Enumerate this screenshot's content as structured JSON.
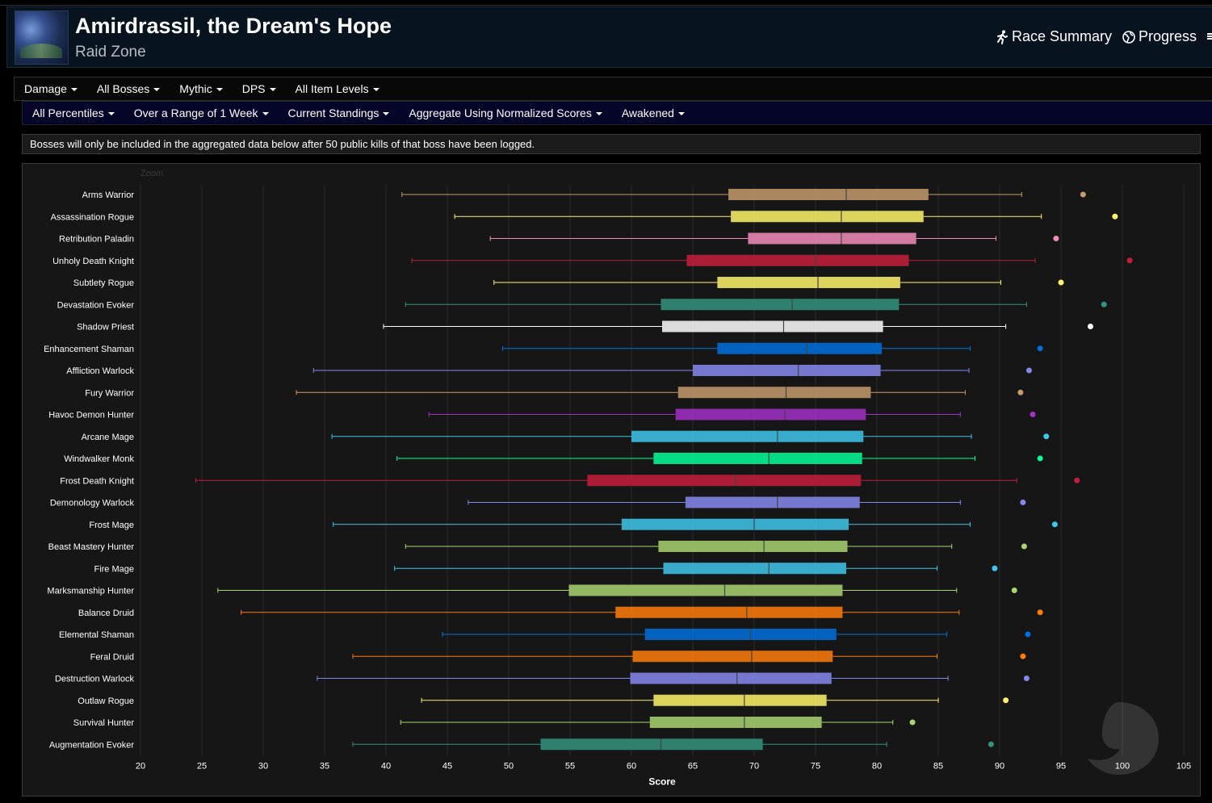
{
  "header": {
    "title": "Amirdrassil, the Dream's Hope",
    "subtitle": "Raid Zone",
    "icon": "raid-zone-icon",
    "links": [
      {
        "label": "Race Summary",
        "icon": "runner-icon"
      },
      {
        "label": "Progress",
        "icon": "globe-icon"
      }
    ]
  },
  "filters_row1": [
    "Damage",
    "All Bosses",
    "Mythic",
    "DPS",
    "All Item Levels"
  ],
  "filters_row2": [
    "All Percentiles",
    "Over a Range of 1 Week",
    "Current Standings",
    "Aggregate Using Normalized Scores",
    "Awakened"
  ],
  "notice": "Bosses will only be included in the aggregated data below after 50 public kills of that boss have been logged.",
  "chart_zoom_label": "Zoom",
  "chart_data": {
    "type": "boxplot",
    "orientation": "horizontal",
    "xlabel": "Score",
    "xlim": [
      20,
      105
    ],
    "xticks": [
      20,
      25,
      30,
      35,
      40,
      45,
      50,
      55,
      60,
      65,
      70,
      75,
      80,
      85,
      90,
      95,
      100,
      105
    ],
    "grid": true,
    "series": [
      {
        "name": "Arms Warrior",
        "color": "#C69B6D",
        "min": 41.3,
        "q1": 67.9,
        "median": 77.5,
        "q3": 84.2,
        "max": 91.8,
        "outlier": 96.8
      },
      {
        "name": "Assassination Rogue",
        "color": "#FFF468",
        "min": 45.6,
        "q1": 68.1,
        "median": 77.1,
        "q3": 83.8,
        "max": 93.4,
        "outlier": 99.4
      },
      {
        "name": "Retribution Paladin",
        "color": "#F48CBA",
        "min": 48.5,
        "q1": 69.5,
        "median": 77.1,
        "q3": 83.2,
        "max": 89.7,
        "outlier": 94.6
      },
      {
        "name": "Unholy Death Knight",
        "color": "#C41E3A",
        "min": 42.1,
        "q1": 64.5,
        "median": 75.0,
        "q3": 82.6,
        "max": 92.9,
        "outlier": 100.6
      },
      {
        "name": "Subtlety Rogue",
        "color": "#FFF468",
        "min": 48.8,
        "q1": 67.0,
        "median": 75.2,
        "q3": 81.9,
        "max": 90.1,
        "outlier": 95.0
      },
      {
        "name": "Devastation Evoker",
        "color": "#33937F",
        "min": 41.6,
        "q1": 62.4,
        "median": 73.1,
        "q3": 81.8,
        "max": 92.2,
        "outlier": 98.5
      },
      {
        "name": "Shadow Priest",
        "color": "#FFFFFF",
        "min": 39.8,
        "q1": 62.5,
        "median": 72.4,
        "q3": 80.5,
        "max": 90.5,
        "outlier": 97.4
      },
      {
        "name": "Enhancement Shaman",
        "color": "#0070DD",
        "min": 49.5,
        "q1": 67.0,
        "median": 74.3,
        "q3": 80.4,
        "max": 87.6,
        "outlier": 93.3
      },
      {
        "name": "Affliction Warlock",
        "color": "#8788EE",
        "min": 34.1,
        "q1": 65.0,
        "median": 73.6,
        "q3": 80.3,
        "max": 87.5,
        "outlier": 92.4
      },
      {
        "name": "Fury Warrior",
        "color": "#C69B6D",
        "min": 32.7,
        "q1": 63.8,
        "median": 72.6,
        "q3": 79.5,
        "max": 87.2,
        "outlier": 91.7
      },
      {
        "name": "Havoc Demon Hunter",
        "color": "#A330C9",
        "min": 43.5,
        "q1": 63.6,
        "median": 72.5,
        "q3": 79.1,
        "max": 86.8,
        "outlier": 92.7
      },
      {
        "name": "Arcane Mage",
        "color": "#3FC7EB",
        "min": 35.6,
        "q1": 60.0,
        "median": 71.9,
        "q3": 78.9,
        "max": 87.7,
        "outlier": 93.8
      },
      {
        "name": "Windwalker Monk",
        "color": "#00FF98",
        "min": 40.9,
        "q1": 61.8,
        "median": 71.2,
        "q3": 78.8,
        "max": 88.0,
        "outlier": 93.3
      },
      {
        "name": "Frost Death Knight",
        "color": "#C41E3A",
        "min": 24.5,
        "q1": 56.4,
        "median": 68.5,
        "q3": 78.7,
        "max": 91.4,
        "outlier": 96.3
      },
      {
        "name": "Demonology Warlock",
        "color": "#8788EE",
        "min": 46.7,
        "q1": 64.4,
        "median": 71.9,
        "q3": 78.6,
        "max": 86.8,
        "outlier": 91.9
      },
      {
        "name": "Frost Mage",
        "color": "#3FC7EB",
        "min": 35.7,
        "q1": 59.2,
        "median": 70.0,
        "q3": 77.7,
        "max": 87.6,
        "outlier": 94.5
      },
      {
        "name": "Beast Mastery Hunter",
        "color": "#AAD372",
        "min": 41.6,
        "q1": 62.2,
        "median": 70.8,
        "q3": 77.6,
        "max": 86.1,
        "outlier": 92.0
      },
      {
        "name": "Fire Mage",
        "color": "#3FC7EB",
        "min": 40.7,
        "q1": 62.6,
        "median": 71.2,
        "q3": 77.5,
        "max": 84.9,
        "outlier": 89.6
      },
      {
        "name": "Marksmanship Hunter",
        "color": "#AAD372",
        "min": 26.3,
        "q1": 54.9,
        "median": 67.6,
        "q3": 77.2,
        "max": 86.5,
        "outlier": 91.2
      },
      {
        "name": "Balance Druid",
        "color": "#FF7C0A",
        "min": 28.2,
        "q1": 58.7,
        "median": 69.4,
        "q3": 77.2,
        "max": 86.7,
        "outlier": 93.3
      },
      {
        "name": "Elemental Shaman",
        "color": "#0070DD",
        "min": 44.6,
        "q1": 61.1,
        "median": 69.7,
        "q3": 76.7,
        "max": 85.7,
        "outlier": 92.3
      },
      {
        "name": "Feral Druid",
        "color": "#FF7C0A",
        "min": 37.3,
        "q1": 60.1,
        "median": 69.8,
        "q3": 76.4,
        "max": 84.9,
        "outlier": 91.9
      },
      {
        "name": "Destruction Warlock",
        "color": "#8788EE",
        "min": 34.4,
        "q1": 59.9,
        "median": 68.6,
        "q3": 76.3,
        "max": 85.8,
        "outlier": 92.2
      },
      {
        "name": "Outlaw Rogue",
        "color": "#FFF468",
        "min": 42.9,
        "q1": 61.8,
        "median": 69.2,
        "q3": 75.9,
        "max": 85.0,
        "outlier": 90.5
      },
      {
        "name": "Survival Hunter",
        "color": "#AAD372",
        "min": 41.2,
        "q1": 61.5,
        "median": 69.2,
        "q3": 75.5,
        "max": 81.3,
        "outlier": 82.9
      },
      {
        "name": "Augmentation Evoker",
        "color": "#33937F",
        "min": 37.3,
        "q1": 52.6,
        "median": 62.4,
        "q3": 70.7,
        "max": 80.8,
        "outlier": 89.3
      }
    ]
  }
}
